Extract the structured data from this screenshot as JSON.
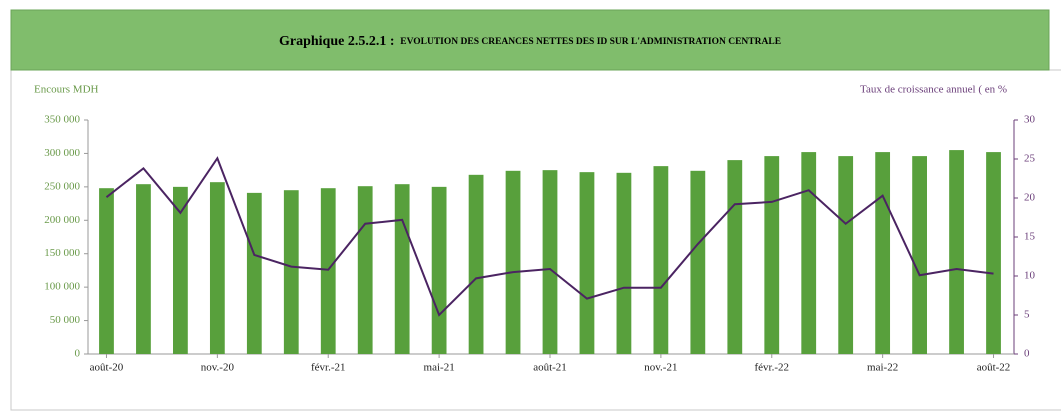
{
  "chart_data": {
    "type": "bar_line",
    "title": "Graphique 2.5.2.1 :",
    "subtitle": "EVOLUTION DES CREANCES NETTES DES ID SUR L'ADMINISTRATION CENTRALE",
    "y_label": "Encours MDH",
    "y2_label": "Taux de croissance annuel ( en %",
    "categories": [
      "août-20",
      null,
      null,
      "nov.-20",
      null,
      null,
      "févr.-21",
      null,
      null,
      "mai-21",
      null,
      null,
      "août-21",
      null,
      null,
      "nov.-21",
      null,
      null,
      "févr.-22",
      null,
      null,
      "mai-22",
      null,
      null,
      "août-22"
    ],
    "series": [
      {
        "type": "bar",
        "color": "#58a03c",
        "values": [
          248000,
          254000,
          250000,
          257000,
          241000,
          245000,
          248000,
          251000,
          254000,
          250000,
          268000,
          274000,
          275000,
          272000,
          271000,
          281000,
          274000,
          290000,
          296000,
          302000,
          296000,
          302000,
          296000,
          305000,
          302000
        ]
      },
      {
        "type": "line",
        "axis": "y2",
        "color": "#4b2462",
        "values": [
          20.1,
          23.8,
          18.1,
          25.1,
          12.7,
          11.2,
          10.8,
          16.7,
          17.2,
          5.0,
          9.7,
          10.5,
          10.9,
          7.1,
          8.5,
          8.5,
          14.1,
          19.2,
          19.5,
          21.0,
          16.7,
          20.3,
          10.1,
          10.9,
          10.3
        ]
      }
    ],
    "ylim": [
      0,
      350000
    ],
    "yticks": [
      {
        "value": 0,
        "label": "0"
      },
      {
        "value": 50000,
        "label": "50 000"
      },
      {
        "value": 100000,
        "label": "100 000"
      },
      {
        "value": 150000,
        "label": "150 000"
      },
      {
        "value": 200000,
        "label": "200 000"
      },
      {
        "value": 250000,
        "label": "250 000"
      },
      {
        "value": 300000,
        "label": "300 000"
      },
      {
        "value": 350000,
        "label": "350 000"
      }
    ],
    "y2lim": [
      0,
      30
    ],
    "y2ticks": [
      0,
      5,
      10,
      15,
      20,
      25,
      30
    ]
  }
}
